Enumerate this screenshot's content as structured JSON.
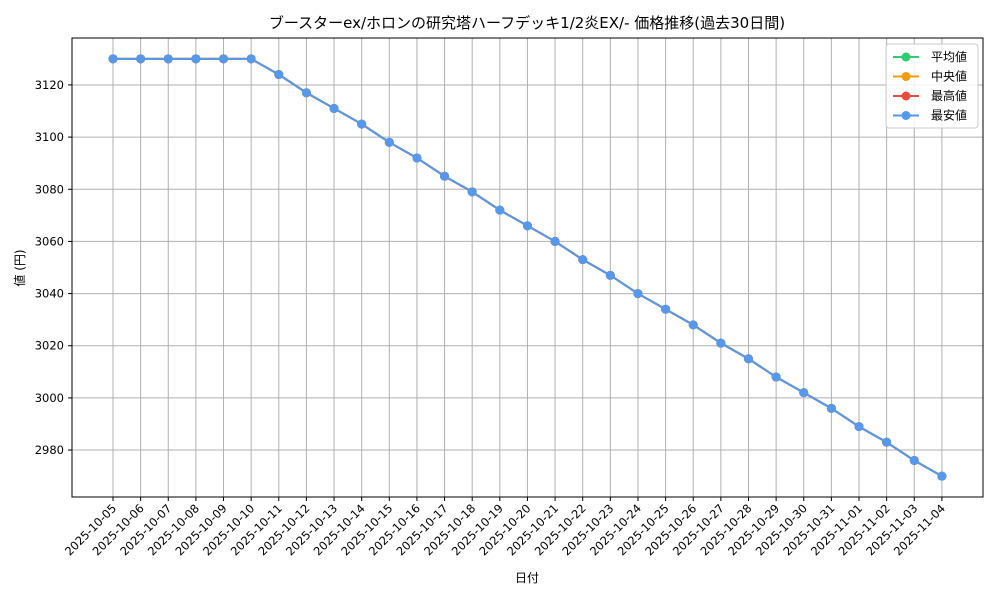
{
  "chart_data": {
    "type": "line",
    "title": "ブースターex/ホロンの研究塔ハーフデッキ1/2炎EX/- 価格推移(過去30日間)",
    "xlabel": "日付",
    "ylabel": "値 (円)",
    "ylim": [
      2962,
      3138
    ],
    "yticks": [
      2980,
      3000,
      3020,
      3040,
      3060,
      3080,
      3100,
      3120
    ],
    "grid": true,
    "legend_position": "top-right",
    "categories": [
      "2025-10-05",
      "2025-10-06",
      "2025-10-07",
      "2025-10-08",
      "2025-10-09",
      "2025-10-10",
      "2025-10-11",
      "2025-10-12",
      "2025-10-13",
      "2025-10-14",
      "2025-10-15",
      "2025-10-16",
      "2025-10-17",
      "2025-10-18",
      "2025-10-19",
      "2025-10-20",
      "2025-10-21",
      "2025-10-22",
      "2025-10-23",
      "2025-10-24",
      "2025-10-25",
      "2025-10-26",
      "2025-10-27",
      "2025-10-28",
      "2025-10-29",
      "2025-10-30",
      "2025-10-31",
      "2025-11-01",
      "2025-11-02",
      "2025-11-03",
      "2025-11-04"
    ],
    "series": [
      {
        "name": "平均値",
        "color": "#2ecc71",
        "values": [
          3130,
          3130,
          3130,
          3130,
          3130,
          3130,
          3124,
          3117,
          3111,
          3105,
          3098,
          3092,
          3085,
          3079,
          3072,
          3066,
          3060,
          3053,
          3047,
          3040,
          3034,
          3028,
          3021,
          3015,
          3008,
          3002,
          2996,
          2989,
          2983,
          2976,
          2970
        ]
      },
      {
        "name": "中央値",
        "color": "#f39c12",
        "values": [
          3130,
          3130,
          3130,
          3130,
          3130,
          3130,
          3124,
          3117,
          3111,
          3105,
          3098,
          3092,
          3085,
          3079,
          3072,
          3066,
          3060,
          3053,
          3047,
          3040,
          3034,
          3028,
          3021,
          3015,
          3008,
          3002,
          2996,
          2989,
          2983,
          2976,
          2970
        ]
      },
      {
        "name": "最高値",
        "color": "#e74c3c",
        "values": [
          3130,
          3130,
          3130,
          3130,
          3130,
          3130,
          3124,
          3117,
          3111,
          3105,
          3098,
          3092,
          3085,
          3079,
          3072,
          3066,
          3060,
          3053,
          3047,
          3040,
          3034,
          3028,
          3021,
          3015,
          3008,
          3002,
          2996,
          2989,
          2983,
          2976,
          2970
        ]
      },
      {
        "name": "最安値",
        "color": "#5599ee",
        "values": [
          3130,
          3130,
          3130,
          3130,
          3130,
          3130,
          3124,
          3117,
          3111,
          3105,
          3098,
          3092,
          3085,
          3079,
          3072,
          3066,
          3060,
          3053,
          3047,
          3040,
          3034,
          3028,
          3021,
          3015,
          3008,
          3002,
          2996,
          2989,
          2983,
          2976,
          2970
        ]
      }
    ]
  }
}
